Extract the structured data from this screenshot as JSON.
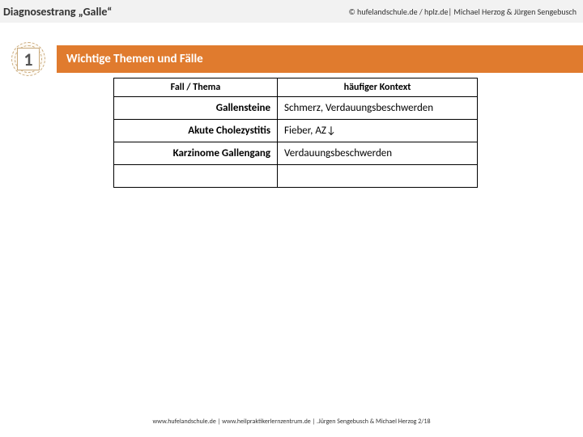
{
  "header": {
    "title_left": "Diagnosestrang „Galle“",
    "title_right": "© hufelandschule.de / hplz.de| Michael Herzog & Jürgen Sengebusch"
  },
  "section": {
    "badge_number": "1",
    "title": "Wichtige Themen und Fälle"
  },
  "table": {
    "head_col1": "Fall / Thema",
    "head_col2": "häufiger Kontext",
    "rows": [
      {
        "case": "Gallensteine",
        "context": "Schmerz, Verdauungsbeschwerden"
      },
      {
        "case": "Akute Cholezystitis",
        "context": "Fieber, AZ↓"
      },
      {
        "case": "Karzinome Gallengang",
        "context": "Verdauungsbeschwerden"
      },
      {
        "case": "",
        "context": ""
      }
    ]
  },
  "footer": {
    "text": "www.hufelandschule.de  |  www.heilpraktikerlernzentrum.de  |  .Jürgen Sengebusch & Michael Herzog  2/18"
  },
  "style": {
    "accent_color": "#e07b2e",
    "header_bg": "#f2f2f2",
    "border_color": "#000000",
    "badge_border": "#c9a97a",
    "page_bg": "#ffffff"
  }
}
